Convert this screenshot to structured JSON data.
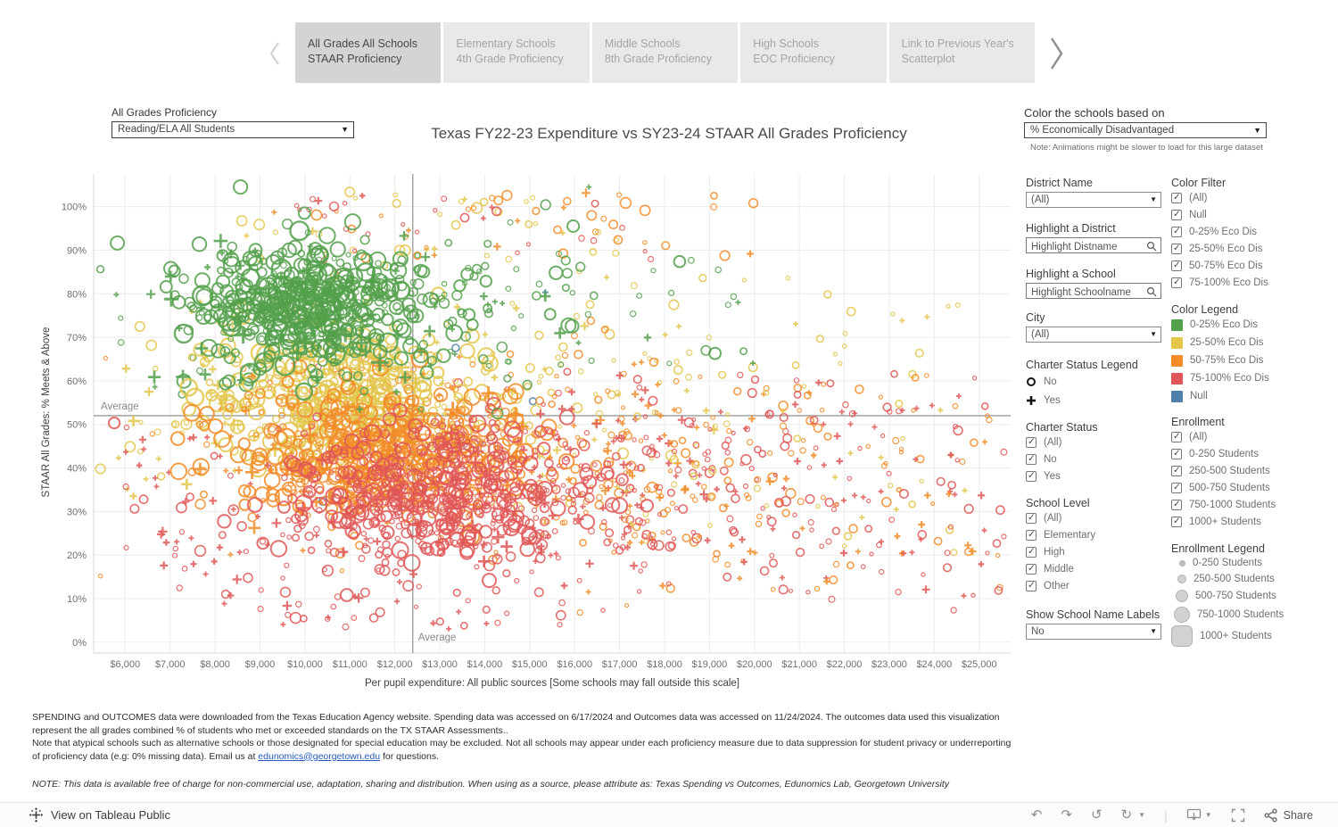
{
  "tab_bar": {
    "tabs": [
      {
        "line1": "All Grades All Schools",
        "line2": "STAAR Proficiency",
        "active": true
      },
      {
        "line1": "Elementary Schools",
        "line2": "4th Grade Proficiency",
        "active": false
      },
      {
        "line1": "Middle Schools",
        "line2": "8th Grade Proficiency",
        "active": false
      },
      {
        "line1": "High Schools",
        "line2": "EOC Proficiency",
        "active": false
      },
      {
        "line1": "Link to Previous Year's",
        "line2": "Scatterplot",
        "active": false
      }
    ]
  },
  "proficiency_control": {
    "label": "All Grades Proficiency",
    "value": "Reading/ELA All Students"
  },
  "title": "Texas FY22-23 Expenditure vs SY23-24 STAAR All Grades Proficiency",
  "color_control": {
    "label": "Color the schools based on",
    "value": "% Economically Disadvantaged",
    "note": "Note: Animations might be slower to load for this large dataset"
  },
  "filters": {
    "district": {
      "label": "District Name",
      "value": "(All)"
    },
    "highlight_district": {
      "label": "Highlight a District",
      "placeholder": "Highlight Distname"
    },
    "highlight_school": {
      "label": "Highlight a School",
      "placeholder": "Highlight Schoolname"
    },
    "city": {
      "label": "City",
      "value": "(All)"
    },
    "charter_legend": {
      "label": "Charter Status Legend",
      "no_label": "No",
      "yes_label": "Yes"
    },
    "charter_status": {
      "label": "Charter Status",
      "options": [
        "(All)",
        "No",
        "Yes"
      ]
    },
    "school_level": {
      "label": "School Level",
      "options": [
        "(All)",
        "Elementary",
        "High",
        "Middle",
        "Other"
      ]
    },
    "show_labels": {
      "label": "Show School Name Labels",
      "value": "No"
    },
    "color_filter": {
      "label": "Color Filter",
      "options": [
        "(All)",
        "Null",
        "0-25% Eco Dis",
        "25-50% Eco Dis",
        "50-75% Eco Dis",
        "75-100% Eco Dis"
      ]
    },
    "color_legend": {
      "label": "Color Legend",
      "items": [
        {
          "label": "0-25% Eco Dis",
          "color": "#53a04b"
        },
        {
          "label": "25-50% Eco Dis",
          "color": "#e3c64a"
        },
        {
          "label": "50-75% Eco Dis",
          "color": "#f28c28"
        },
        {
          "label": "75-100% Eco Dis",
          "color": "#e05757"
        },
        {
          "label": "Null",
          "color": "#4f80ab"
        }
      ]
    },
    "enrollment": {
      "label": "Enrollment",
      "options": [
        "(All)",
        "0-250 Students",
        "250-500 Students",
        "500-750 Students",
        "750-1000 Students",
        "1000+ Students"
      ]
    },
    "enrollment_legend": {
      "label": "Enrollment Legend",
      "items": [
        "0-250 Students",
        "250-500 Students",
        "500-750 Students",
        "750-1000 Students",
        "1000+ Students"
      ]
    }
  },
  "chart_data": {
    "type": "scatter",
    "title": "Texas FY22-23 Expenditure vs SY23-24 STAAR All Grades Proficiency",
    "xlabel": "Per pupil expenditure: All public sources [Some schools may fall outside this scale]",
    "ylabel": "STAAR All Grades: % Meets & Above",
    "x_tick_values": [
      6000,
      7000,
      8000,
      9000,
      10000,
      11000,
      12000,
      13000,
      14000,
      15000,
      16000,
      17000,
      18000,
      19000,
      20000,
      21000,
      22000,
      23000,
      24000,
      25000
    ],
    "x_tick_labels": [
      "$6,000",
      "$7,000",
      "$8,000",
      "$9,000",
      "$10,000",
      "$11,000",
      "$12,000",
      "$13,000",
      "$14,000",
      "$15,000",
      "$16,000",
      "$17,000",
      "$18,000",
      "$19,000",
      "$20,000",
      "$21,000",
      "$22,000",
      "$23,000",
      "$24,000",
      "$25,000"
    ],
    "y_tick_values": [
      0,
      10,
      20,
      30,
      40,
      50,
      60,
      70,
      80,
      90,
      100
    ],
    "y_tick_labels": [
      "0%",
      "10%",
      "20%",
      "30%",
      "40%",
      "50%",
      "60%",
      "70%",
      "80%",
      "90%",
      "100%"
    ],
    "x_range": [
      5300,
      25700
    ],
    "y_range": [
      -2.5,
      107.5
    ],
    "grid": true,
    "average_x": 12400,
    "average_y": 52,
    "average_label": "Average",
    "marker_encoding": {
      "circle": "Charter Status: No",
      "plus": "Charter Status: Yes",
      "size": "Enrollment",
      "color": "% Economically Disadvantaged"
    },
    "colors": {
      "green": "#53a04b",
      "yellow": "#e3c64a",
      "orange": "#f28c28",
      "red": "#e05757",
      "blue": "#4f80ab"
    },
    "clusters": [
      {
        "name": "blue-few",
        "color": "blue",
        "dist": "uniform",
        "count": 7,
        "x_min": 8000,
        "x_max": 21000,
        "y_min": 20,
        "y_max": 85,
        "r_min": 2.5,
        "r_max": 5,
        "plus_frac": 0.15
      },
      {
        "name": "yellow-halo",
        "color": "yellow",
        "dist": "normal",
        "count": 170,
        "x_mean": 13500,
        "x_sd": 3200,
        "y_mean": 55,
        "y_sd": 13,
        "r_min": 2,
        "r_max": 6,
        "plus_frac": 0.2
      },
      {
        "name": "orange-halo",
        "color": "orange",
        "dist": "normal",
        "count": 240,
        "x_mean": 15000,
        "x_sd": 3300,
        "y_mean": 40,
        "y_sd": 13,
        "r_min": 2,
        "r_max": 5.5,
        "plus_frac": 0.22
      },
      {
        "name": "red-halo",
        "color": "red",
        "dist": "normal",
        "count": 280,
        "x_mean": 16200,
        "x_sd": 3400,
        "y_mean": 33,
        "y_sd": 12,
        "r_min": 2,
        "r_max": 5.5,
        "plus_frac": 0.25
      },
      {
        "name": "right-yellow",
        "color": "yellow",
        "dist": "uniform",
        "count": 60,
        "x_min": 16500,
        "x_max": 25500,
        "y_min": 20,
        "y_max": 85,
        "r_min": 2,
        "r_max": 5,
        "plus_frac": 0.2
      },
      {
        "name": "right-orange",
        "color": "orange",
        "dist": "uniform",
        "count": 90,
        "x_min": 17000,
        "x_max": 25500,
        "y_min": 12,
        "y_max": 65,
        "r_min": 2,
        "r_max": 5,
        "plus_frac": 0.25
      },
      {
        "name": "right-red",
        "color": "red",
        "dist": "uniform",
        "count": 120,
        "x_min": 17000,
        "x_max": 25500,
        "y_min": 10,
        "y_max": 62,
        "r_min": 2,
        "r_max": 5,
        "plus_frac": 0.3
      },
      {
        "name": "top-sparse-yellow",
        "color": "yellow",
        "dist": "uniform",
        "count": 35,
        "x_min": 8500,
        "x_max": 17000,
        "y_min": 85,
        "y_max": 104,
        "r_min": 2,
        "r_max": 6,
        "plus_frac": 0.2
      },
      {
        "name": "top-sparse-orange",
        "color": "orange",
        "dist": "uniform",
        "count": 40,
        "x_min": 9000,
        "x_max": 20000,
        "y_min": 88,
        "y_max": 104,
        "r_min": 2,
        "r_max": 6,
        "plus_frac": 0.2
      },
      {
        "name": "top-sparse-red",
        "color": "red",
        "dist": "uniform",
        "count": 30,
        "x_min": 9500,
        "x_max": 18000,
        "y_min": 85,
        "y_max": 103,
        "r_min": 2,
        "r_max": 5,
        "plus_frac": 0.2
      },
      {
        "name": "left-yellow",
        "color": "yellow",
        "dist": "uniform",
        "count": 30,
        "x_min": 6000,
        "x_max": 8800,
        "y_min": 35,
        "y_max": 80,
        "r_min": 2.5,
        "r_max": 7,
        "plus_frac": 0.35
      },
      {
        "name": "left-red",
        "color": "red",
        "dist": "uniform",
        "count": 45,
        "x_min": 6000,
        "x_max": 8800,
        "y_min": 8,
        "y_max": 50,
        "r_min": 2.5,
        "r_max": 6,
        "plus_frac": 0.5
      },
      {
        "name": "left-green",
        "color": "green",
        "dist": "uniform",
        "count": 18,
        "x_min": 6200,
        "x_max": 8800,
        "y_min": 55,
        "y_max": 95,
        "r_min": 3,
        "r_max": 9,
        "plus_frac": 0.4
      },
      {
        "name": "bottom-sparse-red",
        "color": "red",
        "dist": "uniform",
        "count": 40,
        "x_min": 9000,
        "x_max": 16000,
        "y_min": 3,
        "y_max": 15,
        "r_min": 2.5,
        "r_max": 6,
        "plus_frac": 0.3
      },
      {
        "name": "yellow-core",
        "color": "yellow",
        "dist": "normal",
        "count": 420,
        "x_mean": 10800,
        "x_sd": 1500,
        "y_mean": 56,
        "y_sd": 8,
        "r_min": 2.5,
        "r_max": 10,
        "plus_frac": 0.1
      },
      {
        "name": "orange-core",
        "color": "orange",
        "dist": "normal",
        "count": 520,
        "x_mean": 11600,
        "x_sd": 1700,
        "y_mean": 44,
        "y_sd": 8,
        "r_min": 2.5,
        "r_max": 10,
        "plus_frac": 0.12
      },
      {
        "name": "red-core",
        "color": "red",
        "dist": "normal",
        "count": 560,
        "x_mean": 12900,
        "x_sd": 1700,
        "y_mean": 34,
        "y_sd": 8,
        "r_min": 2.5,
        "r_max": 9,
        "plus_frac": 0.12
      },
      {
        "name": "green-halo",
        "color": "green",
        "dist": "normal",
        "count": 160,
        "x_mean": 11000,
        "x_sd": 2600,
        "y_mean": 78,
        "y_sd": 10,
        "r_min": 2.5,
        "r_max": 8,
        "plus_frac": 0.18
      },
      {
        "name": "green-right",
        "color": "green",
        "dist": "uniform",
        "count": 50,
        "x_min": 12500,
        "x_max": 20000,
        "y_min": 60,
        "y_max": 92,
        "r_min": 2.5,
        "r_max": 7,
        "plus_frac": 0.15
      },
      {
        "name": "green-core",
        "color": "green",
        "dist": "normal",
        "count": 500,
        "x_mean": 10000,
        "x_sd": 1150,
        "y_mean": 78,
        "y_sd": 6.5,
        "r_min": 3,
        "r_max": 11,
        "plus_frac": 0.1
      }
    ]
  },
  "footer": {
    "para1": "SPENDING and OUTCOMES data were downloaded from the Texas Education Agency website. Spending data was accessed on 6/17/2024 and Outcomes data was accessed on 11/24/2024. The outcomes data used this visualization represent the all grades combined % of students who met or exceeded standards on the TX STAAR Assessments..",
    "para2_before": "Note that atypical schools such as alternative schools or those designated for special education may be excluded. Not all schools may appear under each proficiency measure due to data suppression for student privacy or underreporting of proficiency data (e.g: 0% missing data). Email us at ",
    "para2_link": "edunomics@georgetown.edu",
    "para2_after": " for questions.",
    "legal": "NOTE: This data is available free of charge for non-commercial use, adaptation, sharing and distribution. When using as a source, please attribute as: Texas Spending vs Outcomes, Edunomics Lab, Georgetown University"
  },
  "toolbar": {
    "view_label": "View on Tableau Public",
    "share_label": "Share"
  }
}
